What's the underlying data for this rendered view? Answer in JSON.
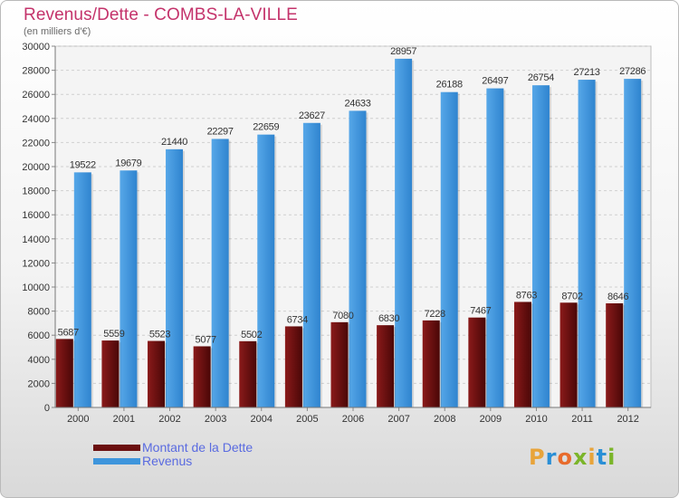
{
  "header": {
    "title": "Revenus/Dette - COMBS-LA-VILLE",
    "subtitle": "(en milliers d'€)"
  },
  "logo": {
    "text": "Proxiti",
    "colors": [
      "#e8a43a",
      "#2a8fd6",
      "#e86b2c",
      "#7bb52a",
      "#e8a43a",
      "#2a8fd6",
      "#7bb52a"
    ]
  },
  "chart_data": {
    "type": "bar",
    "categories": [
      "2000",
      "2001",
      "2002",
      "2003",
      "2004",
      "2005",
      "2006",
      "2007",
      "2008",
      "2009",
      "2010",
      "2011",
      "2012"
    ],
    "series": [
      {
        "name": "Montant de la Dette",
        "color": "#6b0f0f",
        "values": [
          5687,
          5559,
          5523,
          5077,
          5502,
          6734,
          7080,
          6830,
          7228,
          7467,
          8763,
          8702,
          8646
        ],
        "labels": [
          "5687",
          "5559",
          "5523",
          "5077",
          "5502",
          "6734",
          "7080",
          "6830",
          "7228",
          "7467",
          "8763",
          "8702",
          "8646"
        ]
      },
      {
        "name": "Revenus",
        "color": "#3e95dc",
        "values": [
          19522,
          19679,
          21440,
          22297,
          22659,
          23627,
          24633,
          28957,
          26188,
          26497,
          26754,
          27213,
          27286
        ],
        "labels": [
          "19522",
          "19679",
          "21440",
          "22297",
          "22659",
          "23627",
          "24633",
          "28957",
          "26188",
          "26497",
          "26754",
          "27213",
          "27286"
        ]
      }
    ],
    "ylim": [
      0,
      30000
    ],
    "yticks": [
      "0",
      "2000",
      "4000",
      "6000",
      "8000",
      "10000",
      "12000",
      "14000",
      "16000",
      "18000",
      "20000",
      "22000",
      "24000",
      "26000",
      "28000",
      "30000"
    ],
    "grid": true,
    "legend": "bottom-left"
  }
}
